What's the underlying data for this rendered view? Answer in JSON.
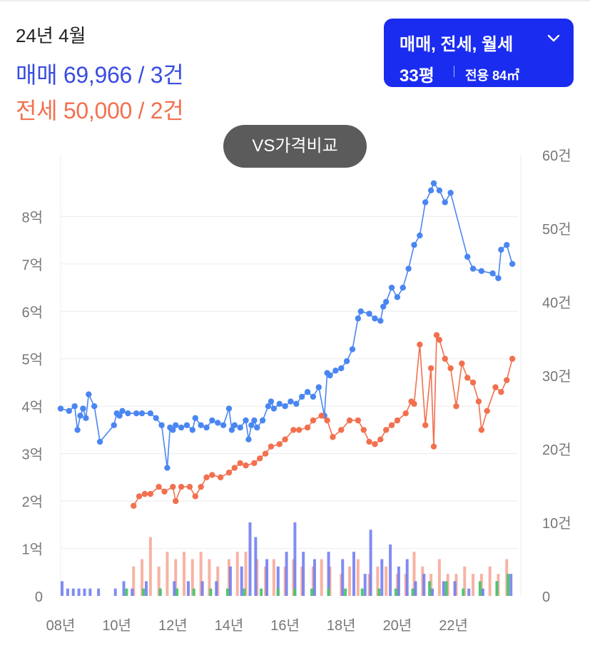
{
  "header": {
    "period": "24년 4월",
    "sale_summary": "매매 69,966 / 3건",
    "jeonse_summary": "전세 50,000 / 2건"
  },
  "filter": {
    "types": "매매, 전세, 월세",
    "area": "33평",
    "exclusive": "전용 84㎡"
  },
  "vs_button": "VS가격비교",
  "colors": {
    "sale": "#4a86f2",
    "sale_text": "#3a4de0",
    "jeonse": "#f2704f",
    "volume_sale": "#6b78f0",
    "volume_jeonse": "#f49a86",
    "volume_rent": "#4cc46a",
    "filter_bg": "#1a2cf0",
    "vs_bg": "#5b5b5b"
  },
  "icons": {
    "filter_toggle": "chevron-down-icon"
  },
  "chart_data": {
    "type": "line",
    "x_ticks": [
      "08년",
      "10년",
      "12년",
      "14년",
      "16년",
      "18년",
      "20년",
      "22년"
    ],
    "x_tick_years": [
      2008,
      2010,
      2012,
      2014,
      2016,
      2018,
      2020,
      2022
    ],
    "xlim": [
      2008,
      2024.3
    ],
    "y_left_ticks": [
      "0",
      "1억",
      "2억",
      "3억",
      "4억",
      "5억",
      "6억",
      "7억",
      "8억"
    ],
    "y_left_values": [
      0,
      1,
      2,
      3,
      4,
      5,
      6,
      7,
      8
    ],
    "y_left_unit": "억",
    "y_left_lim": [
      0,
      9.3
    ],
    "y_right_ticks": [
      "0",
      "10건",
      "20건",
      "30건",
      "40건",
      "50건",
      "60건"
    ],
    "y_right_values": [
      0,
      10,
      20,
      30,
      40,
      50,
      60
    ],
    "y_right_lim": [
      0,
      60
    ],
    "grid": true,
    "series": [
      {
        "name": "매매",
        "values": [
          [
            2008.0,
            3.95
          ],
          [
            2008.3,
            3.9
          ],
          [
            2008.5,
            4.0
          ],
          [
            2008.6,
            3.5
          ],
          [
            2008.7,
            3.8
          ],
          [
            2008.8,
            3.95
          ],
          [
            2008.9,
            3.75
          ],
          [
            2009.0,
            4.25
          ],
          [
            2009.2,
            4.0
          ],
          [
            2009.4,
            3.25
          ],
          [
            2009.9,
            3.6
          ],
          [
            2010.0,
            3.85
          ],
          [
            2010.1,
            3.8
          ],
          [
            2010.2,
            3.9
          ],
          [
            2010.4,
            3.85
          ],
          [
            2010.7,
            3.85
          ],
          [
            2010.9,
            3.85
          ],
          [
            2011.2,
            3.85
          ],
          [
            2011.4,
            3.75
          ],
          [
            2011.6,
            3.6
          ],
          [
            2011.8,
            2.7
          ],
          [
            2011.9,
            3.55
          ],
          [
            2012.0,
            3.5
          ],
          [
            2012.1,
            3.6
          ],
          [
            2012.3,
            3.55
          ],
          [
            2012.5,
            3.6
          ],
          [
            2012.7,
            3.5
          ],
          [
            2012.8,
            3.75
          ],
          [
            2013.0,
            3.6
          ],
          [
            2013.2,
            3.55
          ],
          [
            2013.4,
            3.7
          ],
          [
            2013.6,
            3.65
          ],
          [
            2013.8,
            3.6
          ],
          [
            2014.0,
            3.95
          ],
          [
            2014.1,
            3.5
          ],
          [
            2014.2,
            3.6
          ],
          [
            2014.4,
            3.55
          ],
          [
            2014.6,
            3.7
          ],
          [
            2014.7,
            3.3
          ],
          [
            2014.8,
            3.6
          ],
          [
            2014.9,
            3.7
          ],
          [
            2015.0,
            3.55
          ],
          [
            2015.2,
            3.7
          ],
          [
            2015.4,
            4.0
          ],
          [
            2015.5,
            4.1
          ],
          [
            2015.6,
            3.95
          ],
          [
            2015.8,
            4.05
          ],
          [
            2016.0,
            4.0
          ],
          [
            2016.2,
            4.1
          ],
          [
            2016.4,
            4.05
          ],
          [
            2016.6,
            4.2
          ],
          [
            2016.8,
            4.3
          ],
          [
            2017.0,
            4.2
          ],
          [
            2017.2,
            4.4
          ],
          [
            2017.4,
            3.8
          ],
          [
            2017.5,
            4.7
          ],
          [
            2017.6,
            4.65
          ],
          [
            2017.8,
            4.75
          ],
          [
            2018.0,
            4.8
          ],
          [
            2018.2,
            4.95
          ],
          [
            2018.4,
            5.2
          ],
          [
            2018.6,
            5.85
          ],
          [
            2018.7,
            6.0
          ],
          [
            2019.0,
            5.95
          ],
          [
            2019.2,
            5.85
          ],
          [
            2019.4,
            5.8
          ],
          [
            2019.5,
            6.1
          ],
          [
            2019.6,
            6.2
          ],
          [
            2019.8,
            6.5
          ],
          [
            2020.0,
            6.3
          ],
          [
            2020.2,
            6.5
          ],
          [
            2020.4,
            6.9
          ],
          [
            2020.6,
            7.4
          ],
          [
            2020.8,
            7.6
          ],
          [
            2021.0,
            8.3
          ],
          [
            2021.2,
            8.55
          ],
          [
            2021.3,
            8.7
          ],
          [
            2021.5,
            8.55
          ],
          [
            2021.7,
            8.3
          ],
          [
            2021.9,
            8.5
          ],
          [
            2022.5,
            7.15
          ],
          [
            2022.7,
            6.9
          ],
          [
            2023.0,
            6.85
          ],
          [
            2023.4,
            6.8
          ],
          [
            2023.6,
            6.7
          ],
          [
            2023.7,
            7.3
          ],
          [
            2023.9,
            7.4
          ],
          [
            2024.1,
            7.0
          ]
        ]
      },
      {
        "name": "전세",
        "values": [
          [
            2010.6,
            1.9
          ],
          [
            2010.8,
            2.1
          ],
          [
            2011.0,
            2.15
          ],
          [
            2011.2,
            2.15
          ],
          [
            2011.5,
            2.3
          ],
          [
            2011.7,
            2.2
          ],
          [
            2012.0,
            2.3
          ],
          [
            2012.1,
            2.0
          ],
          [
            2012.3,
            2.3
          ],
          [
            2012.6,
            2.3
          ],
          [
            2012.8,
            2.1
          ],
          [
            2013.0,
            2.3
          ],
          [
            2013.2,
            2.5
          ],
          [
            2013.4,
            2.55
          ],
          [
            2013.7,
            2.5
          ],
          [
            2014.0,
            2.6
          ],
          [
            2014.2,
            2.7
          ],
          [
            2014.4,
            2.8
          ],
          [
            2014.6,
            2.75
          ],
          [
            2014.9,
            2.8
          ],
          [
            2015.1,
            2.9
          ],
          [
            2015.3,
            3.0
          ],
          [
            2015.5,
            3.15
          ],
          [
            2015.8,
            3.2
          ],
          [
            2016.0,
            3.3
          ],
          [
            2016.3,
            3.5
          ],
          [
            2016.5,
            3.5
          ],
          [
            2016.8,
            3.55
          ],
          [
            2017.0,
            3.7
          ],
          [
            2017.3,
            3.8
          ],
          [
            2017.5,
            3.7
          ],
          [
            2017.7,
            3.35
          ],
          [
            2018.0,
            3.5
          ],
          [
            2018.3,
            3.7
          ],
          [
            2018.6,
            3.7
          ],
          [
            2018.8,
            3.5
          ],
          [
            2019.0,
            3.25
          ],
          [
            2019.2,
            3.2
          ],
          [
            2019.4,
            3.3
          ],
          [
            2019.6,
            3.5
          ],
          [
            2019.8,
            3.6
          ],
          [
            2020.0,
            3.7
          ],
          [
            2020.3,
            3.85
          ],
          [
            2020.5,
            4.1
          ],
          [
            2020.6,
            4.05
          ],
          [
            2020.8,
            5.3
          ],
          [
            2021.0,
            3.6
          ],
          [
            2021.2,
            4.8
          ],
          [
            2021.3,
            3.15
          ],
          [
            2021.4,
            5.5
          ],
          [
            2021.5,
            5.4
          ],
          [
            2021.7,
            5.0
          ],
          [
            2021.9,
            4.8
          ],
          [
            2022.1,
            4.0
          ],
          [
            2022.3,
            4.9
          ],
          [
            2022.5,
            4.6
          ],
          [
            2022.7,
            4.5
          ],
          [
            2022.9,
            4.1
          ],
          [
            2023.0,
            3.5
          ],
          [
            2023.2,
            3.9
          ],
          [
            2023.5,
            4.4
          ],
          [
            2023.7,
            4.3
          ],
          [
            2023.9,
            4.55
          ],
          [
            2024.1,
            5.0
          ]
        ]
      }
    ],
    "volume": {
      "sale": [
        [
          2008.0,
          2
        ],
        [
          2008.2,
          1
        ],
        [
          2008.4,
          1
        ],
        [
          2008.6,
          1
        ],
        [
          2008.8,
          1
        ],
        [
          2009.0,
          1
        ],
        [
          2009.3,
          1
        ],
        [
          2009.9,
          1
        ],
        [
          2010.2,
          2
        ],
        [
          2010.5,
          1
        ],
        [
          2011.0,
          2
        ],
        [
          2011.5,
          1
        ],
        [
          2012.0,
          2
        ],
        [
          2012.5,
          2
        ],
        [
          2013.0,
          2
        ],
        [
          2013.5,
          2
        ],
        [
          2014.0,
          4
        ],
        [
          2014.4,
          4
        ],
        [
          2014.7,
          10
        ],
        [
          2014.9,
          8
        ],
        [
          2015.3,
          5
        ],
        [
          2015.7,
          4
        ],
        [
          2016.0,
          6
        ],
        [
          2016.3,
          10
        ],
        [
          2016.6,
          6
        ],
        [
          2017.0,
          5
        ],
        [
          2017.5,
          6
        ],
        [
          2018.0,
          5
        ],
        [
          2018.4,
          6
        ],
        [
          2018.8,
          3
        ],
        [
          2019.0,
          9
        ],
        [
          2019.4,
          5
        ],
        [
          2019.7,
          7
        ],
        [
          2020.0,
          4
        ],
        [
          2020.3,
          5
        ],
        [
          2020.6,
          2
        ],
        [
          2020.9,
          3
        ],
        [
          2021.2,
          1
        ],
        [
          2021.6,
          2
        ],
        [
          2022.0,
          2
        ],
        [
          2022.5,
          1
        ],
        [
          2023.0,
          1
        ],
        [
          2023.5,
          2
        ],
        [
          2024.0,
          3
        ]
      ],
      "jeonse": [
        [
          2010.6,
          4
        ],
        [
          2010.9,
          5
        ],
        [
          2011.2,
          8
        ],
        [
          2011.5,
          4
        ],
        [
          2011.8,
          6
        ],
        [
          2012.1,
          5
        ],
        [
          2012.4,
          6
        ],
        [
          2012.7,
          5
        ],
        [
          2013.0,
          6
        ],
        [
          2013.3,
          5
        ],
        [
          2013.6,
          4
        ],
        [
          2014.0,
          5
        ],
        [
          2014.3,
          6
        ],
        [
          2014.6,
          6
        ],
        [
          2015.0,
          5
        ],
        [
          2015.3,
          4
        ],
        [
          2015.6,
          5
        ],
        [
          2016.0,
          4
        ],
        [
          2016.3,
          5
        ],
        [
          2016.6,
          4
        ],
        [
          2017.0,
          4
        ],
        [
          2017.3,
          5
        ],
        [
          2017.6,
          4
        ],
        [
          2018.0,
          3
        ],
        [
          2018.3,
          4
        ],
        [
          2018.6,
          5
        ],
        [
          2019.0,
          3
        ],
        [
          2019.3,
          4
        ],
        [
          2019.6,
          4
        ],
        [
          2020.0,
          3
        ],
        [
          2020.3,
          3
        ],
        [
          2020.6,
          6
        ],
        [
          2020.9,
          4
        ],
        [
          2021.2,
          3
        ],
        [
          2021.5,
          5
        ],
        [
          2021.8,
          3
        ],
        [
          2022.1,
          3
        ],
        [
          2022.4,
          4
        ],
        [
          2022.7,
          3
        ],
        [
          2023.0,
          3
        ],
        [
          2023.3,
          4
        ],
        [
          2023.6,
          3
        ],
        [
          2023.9,
          5
        ]
      ],
      "rent": [
        [
          2010.4,
          1
        ],
        [
          2011.0,
          1
        ],
        [
          2011.6,
          1
        ],
        [
          2012.2,
          1
        ],
        [
          2012.8,
          1
        ],
        [
          2013.4,
          1
        ],
        [
          2014.0,
          1
        ],
        [
          2014.6,
          1
        ],
        [
          2015.2,
          1
        ],
        [
          2015.8,
          1
        ],
        [
          2016.4,
          1
        ],
        [
          2017.0,
          1
        ],
        [
          2017.6,
          1
        ],
        [
          2018.2,
          1
        ],
        [
          2018.8,
          1
        ],
        [
          2019.4,
          1
        ],
        [
          2020.0,
          1
        ],
        [
          2020.6,
          1
        ],
        [
          2021.2,
          2
        ],
        [
          2021.8,
          2
        ],
        [
          2022.4,
          1
        ],
        [
          2023.0,
          2
        ],
        [
          2023.6,
          2
        ],
        [
          2024.0,
          3
        ]
      ]
    }
  }
}
